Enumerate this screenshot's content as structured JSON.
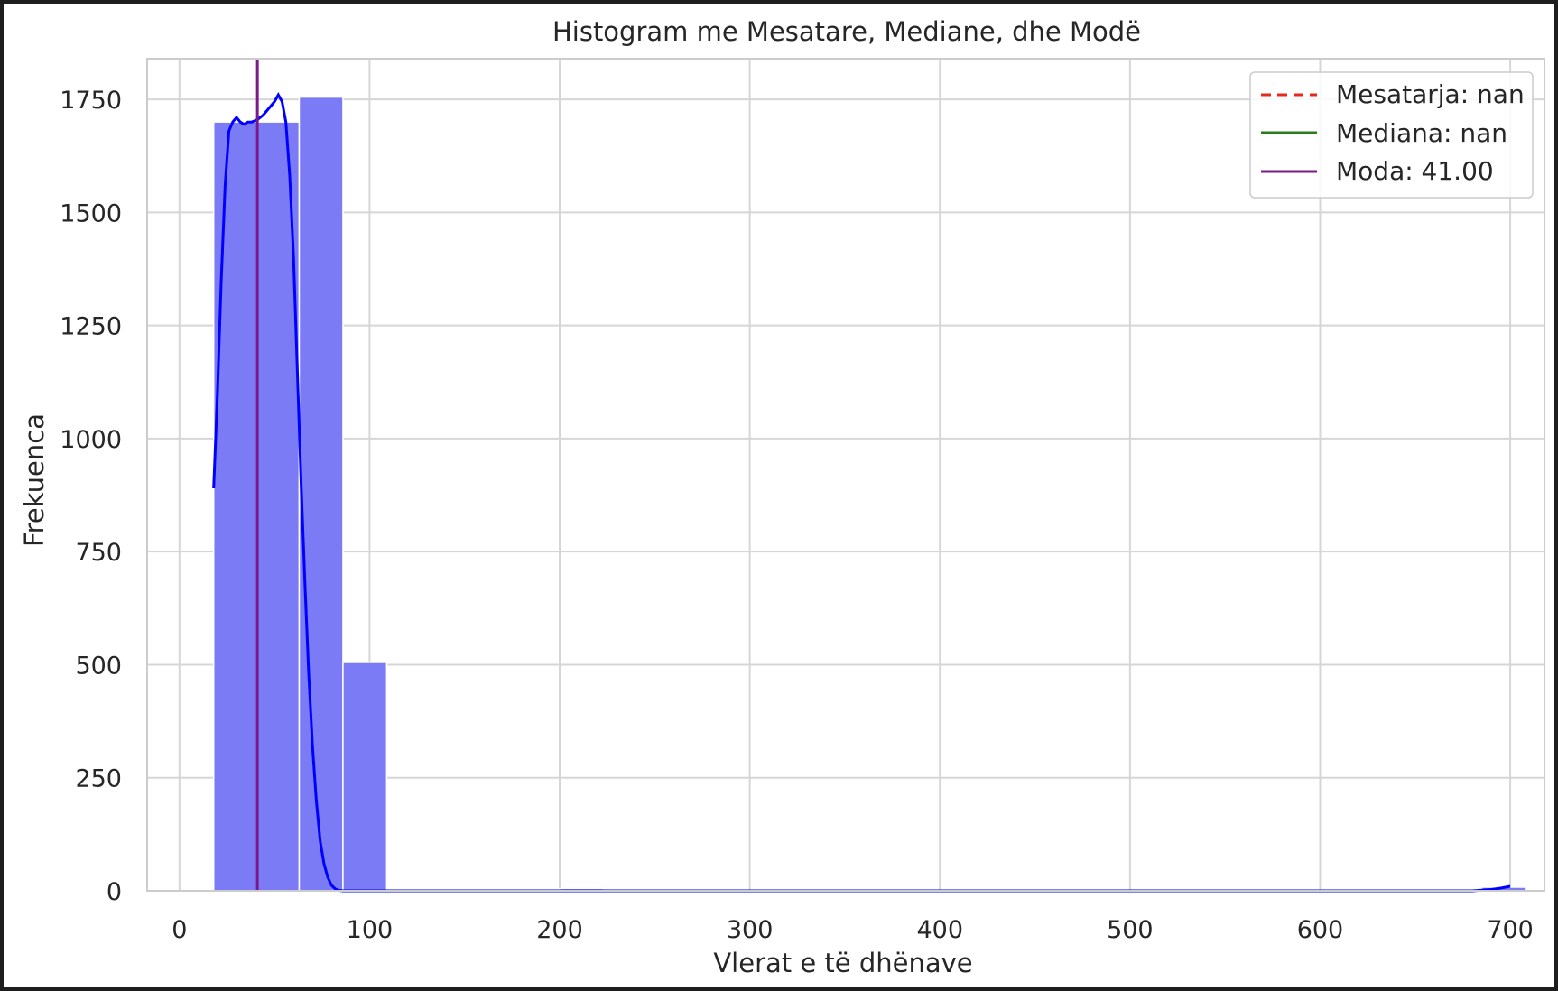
{
  "chart_data": {
    "type": "bar",
    "title": "Histogram me Mesatare, Mediane, dhe Modë",
    "xlabel": "Vlerat e të dhënave",
    "ylabel": "Frekuenca",
    "xlim": [
      -17,
      718
    ],
    "ylim": [
      0,
      1840
    ],
    "xticks": [
      0,
      100,
      200,
      300,
      400,
      500,
      600,
      700
    ],
    "yticks": [
      0,
      250,
      500,
      750,
      1000,
      1250,
      1500,
      1750
    ],
    "grid": true,
    "legend_position": "top-right",
    "bins": [
      {
        "x0": 18,
        "x1": 63,
        "count": 1700
      },
      {
        "x0": 63,
        "x1": 86,
        "count": 1755
      },
      {
        "x0": 86,
        "x1": 109,
        "count": 505
      },
      {
        "x0": 140,
        "x1": 163,
        "count": 3
      },
      {
        "x0": 200,
        "x1": 223,
        "count": 5
      },
      {
        "x0": 232,
        "x1": 255,
        "count": 3
      },
      {
        "x0": 262,
        "x1": 285,
        "count": 3
      },
      {
        "x0": 415,
        "x1": 438,
        "count": 3
      },
      {
        "x0": 685,
        "x1": 708,
        "count": 8
      }
    ],
    "kde": {
      "x": [
        18,
        20,
        22,
        24,
        26,
        28,
        30,
        32,
        34,
        36,
        38,
        41,
        44,
        47,
        50,
        52,
        54,
        56,
        58,
        60,
        62,
        64,
        66,
        68,
        70,
        72,
        74,
        76,
        78,
        80,
        82,
        84,
        86,
        88,
        90,
        95,
        100,
        150,
        200,
        300,
        400,
        500,
        600,
        680,
        690,
        695,
        700
      ],
      "y": [
        890,
        1100,
        1350,
        1560,
        1680,
        1700,
        1710,
        1700,
        1695,
        1700,
        1700,
        1705,
        1715,
        1730,
        1745,
        1760,
        1745,
        1700,
        1580,
        1400,
        1150,
        900,
        680,
        480,
        320,
        200,
        110,
        60,
        30,
        12,
        4,
        1,
        0,
        0,
        0,
        0,
        0,
        0,
        0,
        0,
        0,
        0,
        0,
        0,
        3,
        6,
        10
      ]
    },
    "series": [
      {
        "name": "Mesatarja: nan",
        "color": "#e8281e",
        "style": "dashed"
      },
      {
        "name": "Mediana: nan",
        "color": "#2c7c1c",
        "style": "solid"
      },
      {
        "name": "Moda: 41.00",
        "color": "#7a1a8a",
        "style": "solid",
        "x": 41
      }
    ],
    "colors": {
      "bar_fill": "#7b7bf5",
      "kde_line": "#0000ff",
      "grid": "#d6d6d6",
      "spine": "#cccccc"
    }
  }
}
